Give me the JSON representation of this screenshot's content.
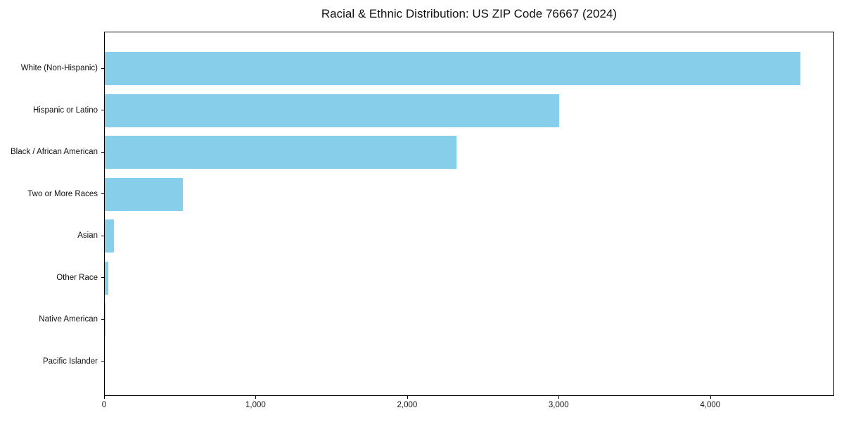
{
  "title": "Racial & Ethnic Distribution: US ZIP Code 76667 (2024)",
  "chart_data": {
    "type": "bar",
    "orientation": "horizontal",
    "title": "Racial & Ethnic Distribution: US ZIP Code 76667 (2024)",
    "xlabel": "",
    "ylabel": "",
    "categories": [
      "White (Non-Hispanic)",
      "Hispanic or Latino",
      "Black / African American",
      "Two or More Races",
      "Asian",
      "Other Race",
      "Native American",
      "Pacific Islander"
    ],
    "values": [
      4590,
      3000,
      2320,
      515,
      60,
      25,
      5,
      0
    ],
    "xlim": [
      0,
      4818
    ],
    "x_ticks": [
      0,
      1000,
      2000,
      3000,
      4000
    ],
    "x_tick_labels": [
      "0",
      "1,000",
      "2,000",
      "3,000",
      "4,000"
    ],
    "bar_color": "#87CEEB",
    "frame_color": "#000000",
    "text_color": "#111111",
    "grid": false,
    "legend": null
  }
}
